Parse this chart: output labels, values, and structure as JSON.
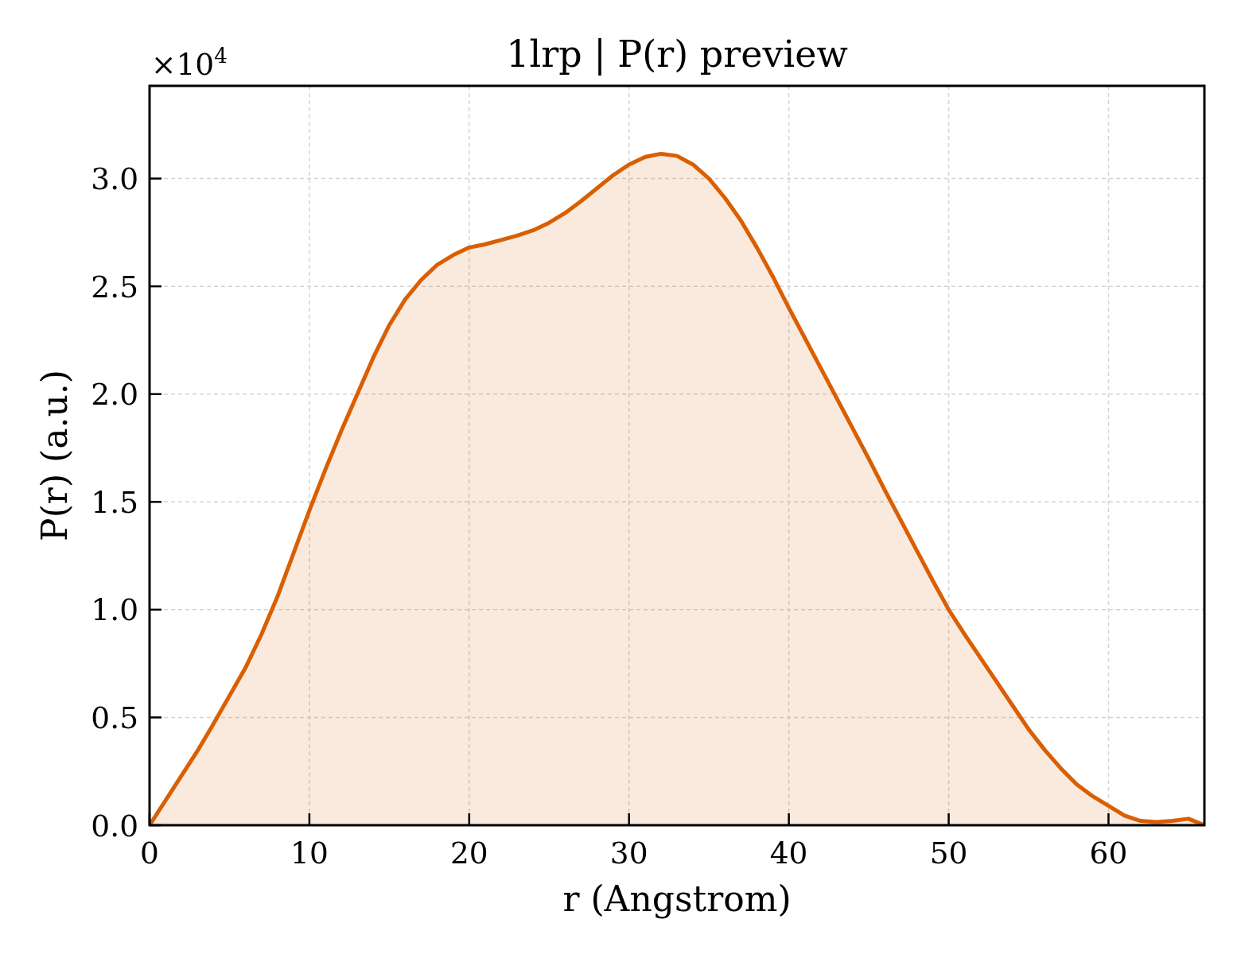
{
  "chart_data": {
    "type": "area",
    "title": "1lrp | P(r) preview",
    "xlabel": "r (Angstrom)",
    "ylabel": "P(r) (a.u.)",
    "annotations": [
      "×10$^{4}$"
    ],
    "x": [
      0,
      1,
      2,
      3,
      4,
      5,
      6,
      7,
      8,
      9,
      10,
      11,
      12,
      13,
      14,
      15,
      16,
      17,
      18,
      19,
      20,
      21,
      22,
      23,
      24,
      25,
      26,
      27,
      28,
      29,
      30,
      31,
      32,
      33,
      34,
      35,
      36,
      37,
      38,
      39,
      40,
      41,
      42,
      43,
      44,
      45,
      46,
      47,
      48,
      49,
      50,
      51,
      52,
      53,
      54,
      55,
      56,
      57,
      58,
      59,
      60,
      61,
      62,
      63,
      64,
      65,
      66
    ],
    "series": [
      {
        "color": "#d95f02",
        "values": [
          0,
          0.115,
          0.23,
          0.345,
          0.47,
          0.6,
          0.73,
          0.885,
          1.06,
          1.26,
          1.46,
          1.65,
          1.83,
          2.0,
          2.17,
          2.32,
          2.44,
          2.53,
          2.6,
          2.645,
          2.68,
          2.695,
          2.715,
          2.735,
          2.76,
          2.795,
          2.84,
          2.895,
          2.955,
          3.015,
          3.065,
          3.1,
          3.115,
          3.105,
          3.065,
          3.0,
          2.91,
          2.805,
          2.68,
          2.545,
          2.4,
          2.26,
          2.12,
          1.98,
          1.84,
          1.7,
          1.555,
          1.415,
          1.275,
          1.135,
          1.0,
          0.885,
          0.775,
          0.665,
          0.555,
          0.445,
          0.35,
          0.265,
          0.19,
          0.135,
          0.09,
          0.045,
          0.02,
          0.015,
          0.02,
          0.03,
          0
        ]
      }
    ],
    "xlim": [
      0,
      66
    ],
    "ylim": [
      0,
      3.43
    ],
    "xticks": [
      0,
      10,
      20,
      30,
      40,
      50,
      60
    ],
    "yticks": [
      {
        "value": 0,
        "label": "0.0"
      },
      0.5,
      {
        "value": 1,
        "label": "1.0"
      },
      1.5,
      {
        "value": 2,
        "label": "2.0"
      },
      2.5,
      {
        "value": 3,
        "label": "3.0"
      }
    ],
    "grid": true
  }
}
